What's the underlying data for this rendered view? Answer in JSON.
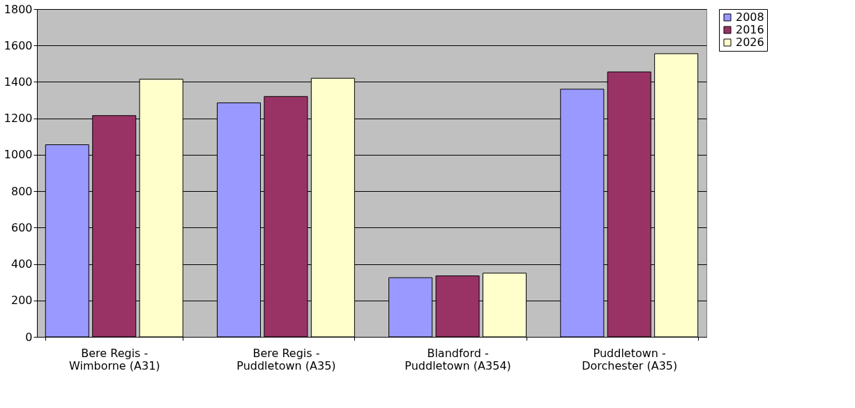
{
  "chart_data": {
    "type": "bar",
    "categories": [
      "Bere Regis -\nWimborne (A31)",
      "Bere Regis -\nPuddletown (A35)",
      "Blandford -\nPuddletown (A354)",
      "Puddletown -\nDorchester (A35)"
    ],
    "series": [
      {
        "name": "2008",
        "color": "#9999ff",
        "values": [
          1055,
          1285,
          325,
          1360
        ]
      },
      {
        "name": "2016",
        "color": "#993366",
        "values": [
          1215,
          1320,
          335,
          1455
        ]
      },
      {
        "name": "2026",
        "color": "#ffffcc",
        "values": [
          1415,
          1420,
          350,
          1555
        ]
      }
    ],
    "ylim": [
      0,
      1800
    ],
    "yticks": [
      0,
      200,
      400,
      600,
      800,
      1000,
      1200,
      1400,
      1600,
      1800
    ],
    "grid": "y",
    "legend": "right"
  }
}
